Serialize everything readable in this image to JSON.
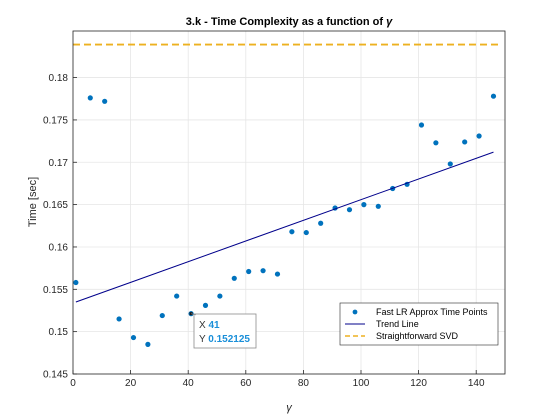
{
  "chart_data": {
    "type": "scatter",
    "title": "3.k - Time Complexity as a function of",
    "title_symbol": "γ",
    "xlabel": "γ",
    "ylabel": "Time [sec]",
    "xlim": [
      0,
      150
    ],
    "ylim": [
      0.145,
      0.1855
    ],
    "xticks": [
      0,
      20,
      40,
      60,
      80,
      100,
      120,
      140
    ],
    "yticks": [
      0.145,
      0.15,
      0.155,
      0.16,
      0.165,
      0.17,
      0.175,
      0.18
    ],
    "grid": true,
    "legend_position": "bottom-right",
    "series": [
      {
        "name": "Fast LR Approx Time Points",
        "kind": "scatter",
        "color": "#0072BD",
        "x": [
          1,
          6,
          11,
          16,
          21,
          26,
          31,
          36,
          41,
          46,
          51,
          56,
          61,
          66,
          71,
          76,
          81,
          86,
          91,
          96,
          101,
          106,
          111,
          116,
          121,
          126,
          131,
          136,
          141,
          146
        ],
        "y": [
          0.1558,
          0.1776,
          0.1772,
          0.1515,
          0.1493,
          0.1485,
          0.1519,
          0.1542,
          0.152125,
          0.1531,
          0.1542,
          0.1563,
          0.1571,
          0.1572,
          0.1568,
          0.1618,
          0.1617,
          0.1628,
          0.1646,
          0.1644,
          0.165,
          0.1648,
          0.1669,
          0.1674,
          0.1744,
          0.1723,
          0.1698,
          0.1724,
          0.1731,
          0.1778
        ]
      },
      {
        "name": "Trend Line",
        "kind": "line",
        "color": "#00008B",
        "x": [
          1,
          146
        ],
        "y": [
          0.1535,
          0.1712
        ]
      },
      {
        "name": "Straightforward SVD",
        "kind": "dashed",
        "color": "#EDB120",
        "x": [
          0,
          148
        ],
        "y": [
          0.1839,
          0.1839
        ]
      }
    ],
    "datatip": {
      "x_label": "X",
      "x_value": "41",
      "y_label": "Y",
      "y_value": "0.152125",
      "point_x": 41,
      "point_y": 0.152125
    }
  }
}
